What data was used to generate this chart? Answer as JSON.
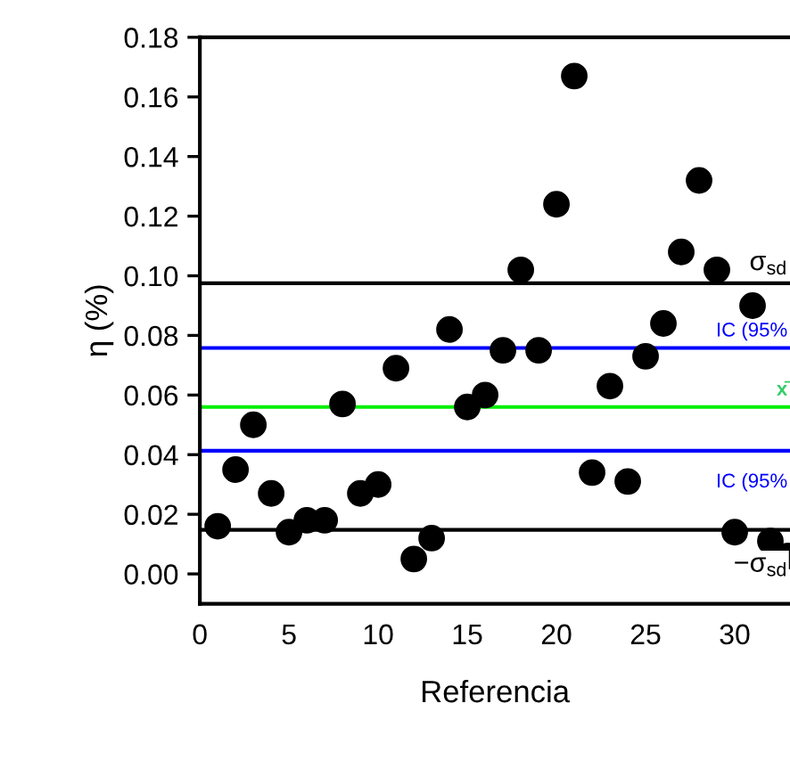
{
  "chart_data": {
    "type": "scatter",
    "xlabel": "Referencia",
    "ylabel": "η (%)",
    "x": [
      1,
      2,
      3,
      4,
      5,
      6,
      7,
      8,
      9,
      10,
      11,
      12,
      13,
      14,
      15,
      16,
      17,
      18,
      19,
      20,
      21,
      22,
      23,
      24,
      25,
      26,
      27,
      28,
      29,
      30,
      31,
      32,
      33
    ],
    "series": [
      {
        "color": "#000000",
        "values": [
          0.016,
          0.035,
          0.05,
          0.027,
          0.014,
          0.018,
          0.018,
          0.057,
          0.027,
          0.03,
          0.069,
          0.005,
          0.012,
          0.082,
          0.056,
          0.06,
          0.075,
          0.102,
          0.075,
          0.124,
          0.167,
          0.034,
          0.063,
          0.031,
          0.073,
          0.084,
          0.108,
          0.132,
          0.102,
          0.014,
          0.09,
          0.011,
          0.006
        ]
      }
    ],
    "xlim": [
      0,
      33.1
    ],
    "xticks": [
      0,
      5,
      10,
      15,
      20,
      25,
      30
    ],
    "ylim": [
      -0.01,
      0.18
    ],
    "yticks": [
      {
        "value": 0,
        "label": "0.00"
      },
      {
        "value": 0.02,
        "label": "0.02"
      },
      {
        "value": 0.04,
        "label": "0.04"
      },
      {
        "value": 0.06,
        "label": "0.06"
      },
      {
        "value": 0.08,
        "label": "0.08"
      },
      {
        "value": 0.1,
        "label": "0.10"
      },
      {
        "value": 0.12,
        "label": "0.12"
      },
      {
        "value": 0.14,
        "label": "0.14"
      },
      {
        "value": 0.16,
        "label": "0.16"
      },
      {
        "value": 0.18,
        "label": "0.18"
      }
    ],
    "ref_lines": [
      {
        "axis": "y",
        "value": 0.0975,
        "label": "σ$_{sd}$",
        "color": "#000000"
      },
      {
        "axis": "y",
        "value": 0.0758,
        "label": "IC (95%",
        "color": "#0000ff"
      },
      {
        "axis": "y",
        "value": 0.056,
        "label": "x̄",
        "color": "#00ee00"
      },
      {
        "axis": "y",
        "value": 0.0413,
        "label": "IC (95%",
        "color": "#0000ff"
      },
      {
        "axis": "y",
        "value": 0.0148,
        "label": "−σ$_{sd}$",
        "color": "#000000"
      }
    ],
    "marker": "circle",
    "grid": false,
    "legend": false
  }
}
